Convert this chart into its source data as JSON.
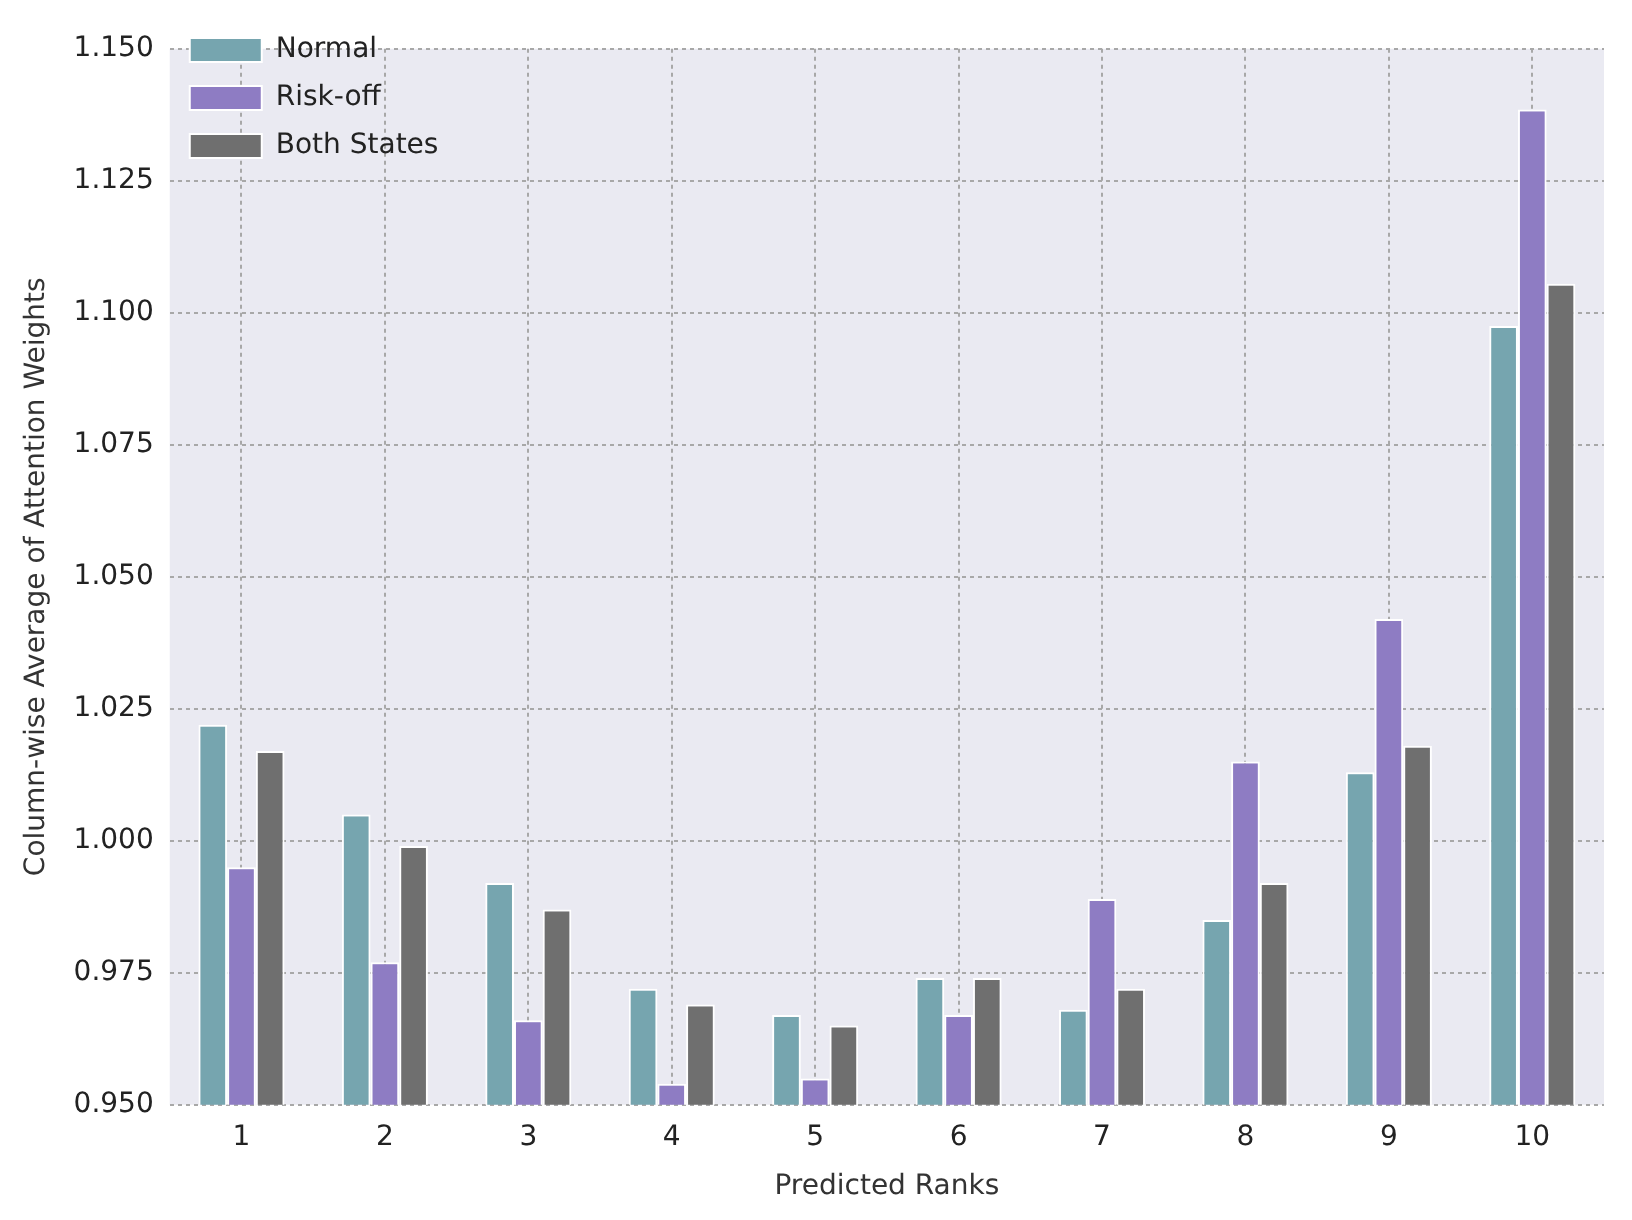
{
  "chart_data": {
    "type": "bar",
    "xlabel": "Predicted Ranks",
    "ylabel": "Column-wise Average of Attention Weights",
    "categories": [
      "1",
      "2",
      "3",
      "4",
      "5",
      "6",
      "7",
      "8",
      "9",
      "10"
    ],
    "series": [
      {
        "name": "Normal",
        "color": "#76a5af",
        "values": [
          1.022,
          1.005,
          0.992,
          0.972,
          0.967,
          0.974,
          0.968,
          0.985,
          1.013,
          1.0975
        ]
      },
      {
        "name": "Risk-off",
        "color": "#8e7cc3",
        "values": [
          0.995,
          0.977,
          0.966,
          0.954,
          0.955,
          0.967,
          0.989,
          1.015,
          1.042,
          1.1385
        ]
      },
      {
        "name": "Both States",
        "color": "#6f6f6f",
        "values": [
          1.017,
          0.999,
          0.987,
          0.969,
          0.965,
          0.974,
          0.972,
          0.992,
          1.018,
          1.1055
        ]
      }
    ],
    "ylim": [
      0.95,
      1.15
    ],
    "yticks": [
      {
        "value": 0.95,
        "label": "0.950"
      },
      {
        "value": 0.975,
        "label": "0.975"
      },
      {
        "value": 1.0,
        "label": "1.000"
      },
      {
        "value": 1.025,
        "label": "1.025"
      },
      {
        "value": 1.05,
        "label": "1.050"
      },
      {
        "value": 1.075,
        "label": "1.075"
      },
      {
        "value": 1.1,
        "label": "1.100"
      },
      {
        "value": 1.125,
        "label": "1.125"
      },
      {
        "value": 1.15,
        "label": "1.150"
      }
    ],
    "grid": true,
    "legend": "top left"
  }
}
